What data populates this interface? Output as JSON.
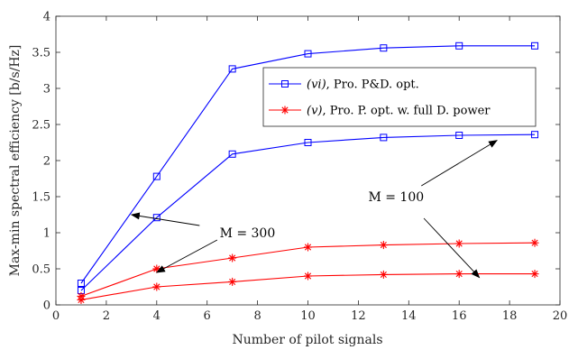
{
  "chart_data": {
    "type": "line",
    "xlabel": "Number of pilot signals",
    "ylabel": "Max-min spectral efficiency [b/s/Hz]",
    "xlim": [
      0,
      20
    ],
    "ylim": [
      0,
      4
    ],
    "xticks": [
      0,
      2,
      4,
      6,
      8,
      10,
      12,
      14,
      16,
      18,
      20
    ],
    "yticks": [
      0,
      0.5,
      1,
      1.5,
      2,
      2.5,
      3,
      3.5,
      4
    ],
    "xtick_labels": [
      "0",
      "2",
      "4",
      "6",
      "8",
      "10",
      "12",
      "14",
      "16",
      "18",
      "20"
    ],
    "ytick_labels": [
      "0",
      "0.5",
      "1",
      "1.5",
      "2",
      "2.5",
      "3",
      "3.5",
      "4"
    ],
    "grid": false,
    "legend_position": "top-right",
    "legend": [
      {
        "label_italic": "(vi)",
        "label_rest": ", Pro. P&D. opt.",
        "color": "#0000ff",
        "marker": "square"
      },
      {
        "label_italic": "(v)",
        "label_rest": ", Pro. P. opt. w. full D. power",
        "color": "#ff0000",
        "marker": "asterisk"
      }
    ],
    "series": [
      {
        "group": "vi",
        "color": "#0000ff",
        "marker": "square",
        "x": [
          1,
          4,
          7,
          10,
          13,
          16,
          19
        ],
        "y": [
          0.3,
          1.78,
          3.27,
          3.48,
          3.56,
          3.59,
          3.59
        ]
      },
      {
        "group": "vi",
        "color": "#0000ff",
        "marker": "square",
        "x": [
          1,
          4,
          7,
          10,
          13,
          16,
          19
        ],
        "y": [
          0.2,
          1.21,
          2.09,
          2.25,
          2.32,
          2.35,
          2.36
        ]
      },
      {
        "group": "v",
        "color": "#ff0000",
        "marker": "asterisk",
        "x": [
          1,
          4,
          7,
          10,
          13,
          16,
          19
        ],
        "y": [
          0.12,
          0.5,
          0.65,
          0.8,
          0.83,
          0.85,
          0.86
        ]
      },
      {
        "group": "v",
        "color": "#ff0000",
        "marker": "asterisk",
        "x": [
          1,
          4,
          7,
          10,
          13,
          16,
          19
        ],
        "y": [
          0.07,
          0.25,
          0.32,
          0.4,
          0.42,
          0.43,
          0.43
        ]
      }
    ],
    "annotations": [
      {
        "text": "M = 300",
        "x": 7.6,
        "y": 1.0,
        "arrows": [
          {
            "from": [
              5.7,
              1.1
            ],
            "to": [
              3.0,
              1.25
            ]
          },
          {
            "from": [
              6.4,
              0.9
            ],
            "to": [
              4.0,
              0.45
            ]
          }
        ]
      },
      {
        "text": "M = 100",
        "x": 13.5,
        "y": 1.5,
        "arrows": [
          {
            "from": [
              14.5,
              1.65
            ],
            "to": [
              17.5,
              2.28
            ]
          },
          {
            "from": [
              14.6,
              1.2
            ],
            "to": [
              16.8,
              0.38
            ]
          }
        ]
      }
    ]
  }
}
